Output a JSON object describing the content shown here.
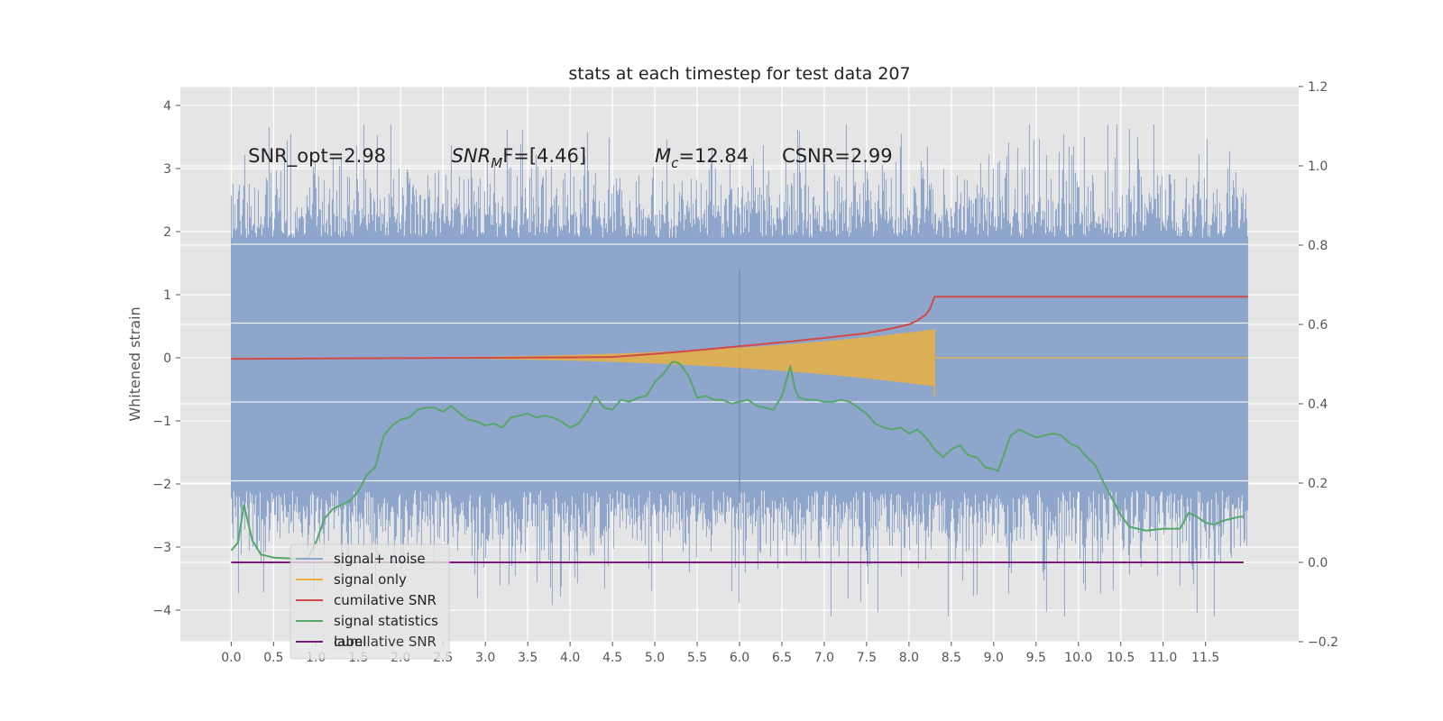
{
  "chart_data": {
    "type": "line",
    "title": "stats at each timestep for test data 207",
    "ylabel": "Whitened strain",
    "xlim": [
      -0.6,
      12.6
    ],
    "ylim": [
      -4.5,
      4.3
    ],
    "y2lim": [
      -0.2,
      1.2
    ],
    "x_ticks": [
      0.0,
      0.5,
      1.0,
      1.5,
      2.0,
      2.5,
      3.0,
      3.5,
      4.0,
      4.5,
      5.0,
      5.5,
      6.0,
      6.5,
      7.0,
      7.5,
      8.0,
      8.5,
      9.0,
      9.5,
      10.0,
      10.5,
      11.0,
      11.5
    ],
    "x_tick_labels": [
      "0.0",
      "0.5",
      "1.0",
      "1.5",
      "2.0",
      "2.5",
      "3.0",
      "3.5",
      "4.0",
      "4.5",
      "5.0",
      "5.5",
      "6.0",
      "6.5",
      "7.0",
      "7.5",
      "8.0",
      "8.5",
      "9.0",
      "9.5",
      "10.0",
      "10.5",
      "11.0",
      "11.5"
    ],
    "y_ticks": [
      -4,
      -3,
      -2,
      -1,
      0,
      1,
      2,
      3,
      4
    ],
    "y_tick_labels": [
      "−4",
      "−3",
      "−2",
      "−1",
      "0",
      "1",
      "2",
      "3",
      "4"
    ],
    "y2_ticks": [
      -0.2,
      0.0,
      0.2,
      0.4,
      0.6,
      0.8,
      1.0,
      1.2
    ],
    "y2_tick_labels": [
      "−0.2",
      "0.0",
      "0.2",
      "0.4",
      "0.6",
      "0.8",
      "1.0",
      "1.2"
    ],
    "grid": true,
    "legend_position": "lower-left",
    "annotations": [
      {
        "text": "SNR_opt=2.98",
        "x": 0.2,
        "y": 3.1
      },
      {
        "text": "SNR",
        "sub": "M",
        "suffix": "F=[4.46]",
        "x": 2.6,
        "y": 3.1
      },
      {
        "text": "M",
        "sub": "c",
        "suffix": "=12.84",
        "x": 5.0,
        "y": 3.1
      },
      {
        "text": "CSNR=2.99",
        "x": 6.5,
        "y": 3.1
      }
    ],
    "series": [
      {
        "name": "signal+ noise",
        "color": "#8fa6cc",
        "axis": "left",
        "kind": "noise",
        "x_range": [
          0.0,
          12.0
        ],
        "band_low": -2.1,
        "band_high": 1.9,
        "peak_max": 3.7,
        "peak_min": -4.1
      },
      {
        "name": "signal only",
        "color": "#e9b041",
        "axis": "left",
        "kind": "chirp",
        "x_range": [
          0.0,
          12.0
        ],
        "merger_x": 8.3,
        "max_amplitude": 0.45
      },
      {
        "name": "cumilative SNR",
        "color": "#d04a4a",
        "axis": "right",
        "x": [
          0.0,
          1.0,
          2.0,
          3.0,
          4.0,
          4.5,
          5.0,
          5.5,
          6.0,
          6.5,
          7.0,
          7.5,
          7.8,
          8.0,
          8.1,
          8.2,
          8.25,
          8.3,
          9.0,
          10.0,
          11.0,
          12.0
        ],
        "y": [
          0.513,
          0.514,
          0.515,
          0.516,
          0.517,
          0.518,
          0.526,
          0.535,
          0.545,
          0.555,
          0.566,
          0.578,
          0.59,
          0.6,
          0.61,
          0.625,
          0.64,
          0.67,
          0.67,
          0.67,
          0.67,
          0.67
        ]
      },
      {
        "name": "signal statistics",
        "color": "#55a868",
        "axis": "right",
        "x": [
          0.0,
          0.08,
          0.15,
          0.25,
          0.35,
          0.5,
          0.7,
          0.9,
          1.0,
          1.1,
          1.2,
          1.3,
          1.4,
          1.5,
          1.6,
          1.7,
          1.8,
          1.9,
          2.0,
          2.1,
          2.2,
          2.3,
          2.4,
          2.5,
          2.6,
          2.7,
          2.8,
          2.9,
          3.0,
          3.1,
          3.2,
          3.3,
          3.4,
          3.5,
          3.6,
          3.7,
          3.8,
          3.9,
          4.0,
          4.1,
          4.2,
          4.3,
          4.4,
          4.5,
          4.6,
          4.7,
          4.8,
          4.9,
          5.0,
          5.1,
          5.2,
          5.25,
          5.3,
          5.4,
          5.5,
          5.6,
          5.7,
          5.8,
          5.9,
          6.0,
          6.1,
          6.2,
          6.3,
          6.4,
          6.5,
          6.6,
          6.65,
          6.7,
          6.8,
          6.9,
          7.0,
          7.1,
          7.2,
          7.3,
          7.4,
          7.5,
          7.6,
          7.7,
          7.8,
          7.9,
          8.0,
          8.1,
          8.2,
          8.3,
          8.4,
          8.5,
          8.6,
          8.7,
          8.8,
          8.9,
          9.0,
          9.05,
          9.1,
          9.2,
          9.3,
          9.4,
          9.5,
          9.6,
          9.7,
          9.8,
          9.9,
          10.0,
          10.1,
          10.2,
          10.3,
          10.4,
          10.5,
          10.6,
          10.7,
          10.8,
          11.0,
          11.2,
          11.3,
          11.4,
          11.5,
          11.6,
          11.7,
          11.8,
          11.9,
          11.95
        ],
        "y": [
          0.03,
          0.05,
          0.145,
          0.055,
          0.02,
          0.012,
          0.01,
          0.01,
          0.05,
          0.11,
          0.135,
          0.145,
          0.155,
          0.18,
          0.22,
          0.24,
          0.32,
          0.345,
          0.36,
          0.365,
          0.385,
          0.39,
          0.39,
          0.38,
          0.395,
          0.375,
          0.36,
          0.355,
          0.345,
          0.35,
          0.34,
          0.365,
          0.37,
          0.375,
          0.365,
          0.37,
          0.365,
          0.355,
          0.34,
          0.35,
          0.38,
          0.42,
          0.39,
          0.385,
          0.41,
          0.405,
          0.415,
          0.42,
          0.455,
          0.475,
          0.505,
          0.505,
          0.5,
          0.47,
          0.415,
          0.42,
          0.41,
          0.41,
          0.4,
          0.405,
          0.41,
          0.395,
          0.39,
          0.385,
          0.42,
          0.495,
          0.44,
          0.415,
          0.41,
          0.41,
          0.405,
          0.405,
          0.41,
          0.405,
          0.39,
          0.375,
          0.35,
          0.34,
          0.335,
          0.34,
          0.325,
          0.335,
          0.315,
          0.285,
          0.265,
          0.285,
          0.295,
          0.27,
          0.265,
          0.24,
          0.235,
          0.23,
          0.26,
          0.32,
          0.335,
          0.325,
          0.315,
          0.32,
          0.325,
          0.32,
          0.3,
          0.29,
          0.265,
          0.245,
          0.2,
          0.16,
          0.12,
          0.09,
          0.085,
          0.08,
          0.085,
          0.085,
          0.125,
          0.115,
          0.1,
          0.095,
          0.105,
          0.11,
          0.115,
          0.115
        ]
      },
      {
        "name": "label",
        "color": "#7a1a7e",
        "axis": "right",
        "x": [
          0.0,
          11.95
        ],
        "y": [
          0.0,
          0.0
        ]
      }
    ],
    "legend_overlap_text": "cumilative SNR"
  }
}
